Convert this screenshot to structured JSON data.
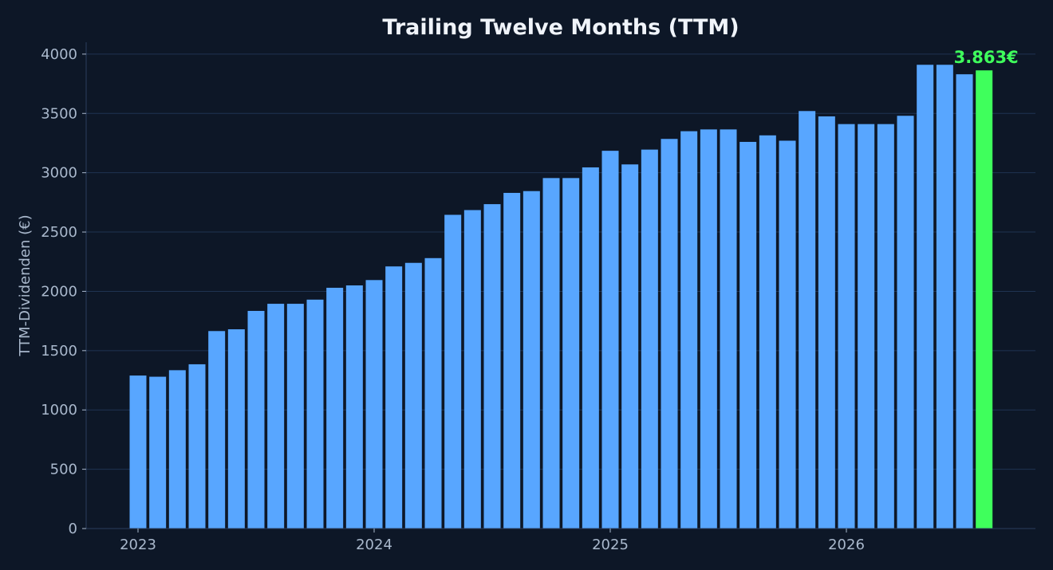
{
  "chart_data": {
    "type": "bar",
    "title": "Trailing Twelve Months (TTM)",
    "xlabel": "",
    "ylabel": "TTM-Dividenden (€)",
    "ylim": [
      0,
      4100
    ],
    "yticks": [
      0,
      500,
      1000,
      1500,
      2000,
      2500,
      3000,
      3500,
      4000
    ],
    "xticks": [
      {
        "label": "2023",
        "date": "2023-01"
      },
      {
        "label": "2024",
        "date": "2024-01"
      },
      {
        "label": "2025",
        "date": "2025-01"
      },
      {
        "label": "2026",
        "date": "2026-01"
      }
    ],
    "x": [
      "2023-01",
      "2023-02",
      "2023-03",
      "2023-04",
      "2023-05",
      "2023-06",
      "2023-07",
      "2023-08",
      "2023-09",
      "2023-10",
      "2023-11",
      "2023-12",
      "2024-01",
      "2024-02",
      "2024-03",
      "2024-04",
      "2024-05",
      "2024-06",
      "2024-07",
      "2024-08",
      "2024-09",
      "2024-10",
      "2024-11",
      "2024-12",
      "2025-01",
      "2025-02",
      "2025-03",
      "2025-04",
      "2025-05",
      "2025-06",
      "2025-07",
      "2025-08",
      "2025-09",
      "2025-10",
      "2025-11",
      "2025-12",
      "2026-01",
      "2026-02",
      "2026-03",
      "2026-04",
      "2026-05",
      "2026-06",
      "2026-07",
      "2026-08"
    ],
    "values": [
      1290,
      1280,
      1335,
      1385,
      1665,
      1680,
      1835,
      1895,
      1895,
      1930,
      2030,
      2050,
      2095,
      2210,
      2240,
      2280,
      2645,
      2685,
      2735,
      2830,
      2845,
      2955,
      2955,
      3045,
      3185,
      3070,
      3195,
      3285,
      3350,
      3365,
      3365,
      3260,
      3315,
      3270,
      3520,
      3475,
      3410,
      3410,
      3410,
      3480,
      3910,
      3910,
      3830,
      3863
    ],
    "highlight_last": true,
    "highlight_label": "3.863€",
    "grid": true,
    "colors": {
      "background": "#0d1727",
      "bar": "#58a6ff",
      "highlight": "#3fff5c",
      "grid": "#1f3352",
      "axis": "#2a3d5e",
      "text": "#f0f4fa",
      "tick_text": "#a9b8cc"
    }
  }
}
